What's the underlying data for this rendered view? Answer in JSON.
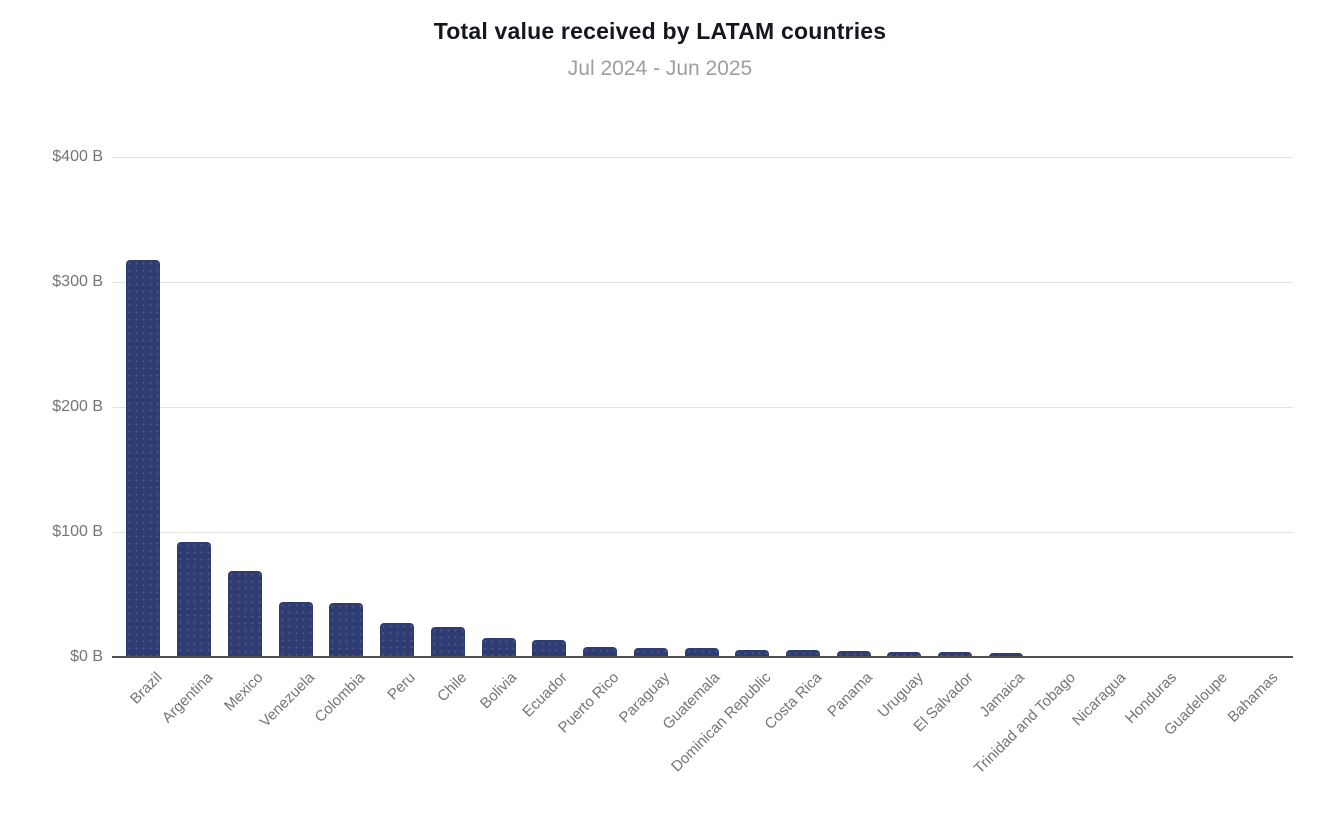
{
  "page": {
    "background": "#ffffff"
  },
  "chart_data": {
    "type": "bar",
    "title": "Total value received by LATAM countries",
    "subtitle": "Jul 2024 - Jun 2025",
    "categories": [
      "Brazil",
      "Argentina",
      "Mexico",
      "Venezuela",
      "Colombia",
      "Peru",
      "Chile",
      "Bolivia",
      "Ecuador",
      "Puerto Rico",
      "Paraguay",
      "Guatemala",
      "Dominican Republic",
      "Costa Rica",
      "Panama",
      "Uruguay",
      "El Salvador",
      "Jamaica",
      "Trinidad and Tobago",
      "Nicaragua",
      "Honduras",
      "Guadeloupe",
      "Bahamas"
    ],
    "values": [
      318,
      92,
      69,
      44,
      43,
      27,
      24,
      15,
      14,
      8,
      7,
      7,
      6,
      6,
      5,
      4,
      4,
      3,
      1,
      1,
      1,
      0.3,
      0.2
    ],
    "value_unit": "USD billions",
    "y_ticks": [
      {
        "label": "$0 B",
        "value": 0
      },
      {
        "label": "$100 B",
        "value": 100
      },
      {
        "label": "$200 B",
        "value": 200
      },
      {
        "label": "$300 B",
        "value": 300
      },
      {
        "label": "$400 B",
        "value": 400
      }
    ],
    "ylim": [
      0,
      400
    ],
    "xlabel": "",
    "ylabel": "",
    "grid": "horizontal",
    "legend": "none",
    "x_label_rotation_deg": -45,
    "colors": {
      "bar": "#2e3c72",
      "title": "#15171e",
      "subtitle": "#9e9e9e",
      "axis_label": "#757575",
      "gridline": "#e2e2e2",
      "axis_line": "#4f4f4f"
    }
  }
}
